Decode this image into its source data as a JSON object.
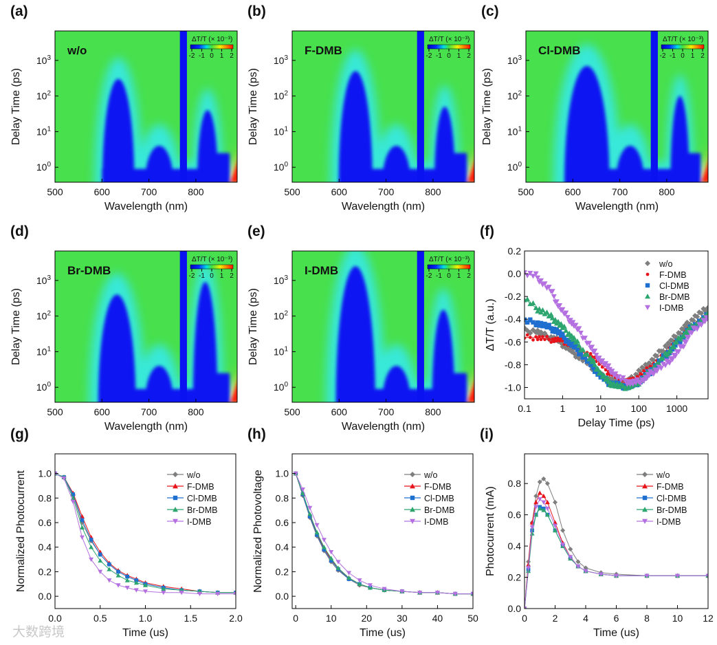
{
  "watermark": "大数跨境",
  "colors": {
    "w/o": "#7f7f7f",
    "F-DMB": "#e8141b",
    "Cl-DMB": "#1f6fd0",
    "Br-DMB": "#2ca56e",
    "I-DMB": "#b470e0"
  },
  "heatmap_colors": {
    "bleach": "#0a12f2",
    "halo": "#38e8d8",
    "background": "#48e04c",
    "positive": "#ff1a10"
  },
  "chart_data": [
    {
      "id": "a",
      "panel_label": "(a)",
      "type": "heatmap",
      "sample": "w/o",
      "xlabel": "Wavelength (nm)",
      "ylabel": "Delay Time (ps)",
      "xlim": [
        500,
        888
      ],
      "ylim": [
        0.38,
        6700
      ],
      "yscale": "log",
      "xticks": [
        "500",
        "600",
        "700",
        "800"
      ],
      "yticks": [
        "10^0",
        "10^1",
        "10^2",
        "10^3"
      ],
      "colorbar": {
        "title": "ΔT/T (× 10⁻³)",
        "ticks": [
          "-2",
          "-1",
          "0",
          "1",
          "2"
        ]
      },
      "bands": [
        {
          "nm": 635,
          "w": 34,
          "top": 300
        },
        {
          "nm": 722,
          "w": 30,
          "top": 4
        },
        {
          "nm": 825,
          "w": 22,
          "top": 40
        }
      ]
    },
    {
      "id": "b",
      "panel_label": "(b)",
      "type": "heatmap",
      "sample": "F-DMB",
      "xlabel": "Wavelength (nm)",
      "ylabel": "Delay Time (ps)",
      "xlim": [
        500,
        888
      ],
      "ylim": [
        0.38,
        6700
      ],
      "yscale": "log",
      "xticks": [
        "500",
        "600",
        "700",
        "800"
      ],
      "yticks": [
        "10^0",
        "10^1",
        "10^2",
        "10^3"
      ],
      "colorbar": {
        "title": "ΔT/T (× 10⁻³)",
        "ticks": [
          "-2",
          "-1",
          "0",
          "1",
          "2"
        ]
      },
      "bands": [
        {
          "nm": 635,
          "w": 36,
          "top": 500
        },
        {
          "nm": 722,
          "w": 30,
          "top": 4
        },
        {
          "nm": 825,
          "w": 22,
          "top": 50
        }
      ]
    },
    {
      "id": "c",
      "panel_label": "(c)",
      "type": "heatmap",
      "sample": "Cl-DMB",
      "xlabel": "Wavelength (nm)",
      "ylabel": "Delay Time (ps)",
      "xlim": [
        500,
        888
      ],
      "ylim": [
        0.38,
        6700
      ],
      "yscale": "log",
      "xticks": [
        "500",
        "600",
        "700",
        "800"
      ],
      "yticks": [
        "10^0",
        "10^1",
        "10^2",
        "10^3"
      ],
      "colorbar": {
        "title": "ΔT/T (× 10⁻³)",
        "ticks": [
          "-2",
          "-1",
          "0",
          "1",
          "2"
        ]
      },
      "bands": [
        {
          "nm": 630,
          "w": 48,
          "top": 700
        },
        {
          "nm": 722,
          "w": 30,
          "top": 4
        },
        {
          "nm": 828,
          "w": 20,
          "top": 100
        }
      ]
    },
    {
      "id": "d",
      "panel_label": "(d)",
      "type": "heatmap",
      "sample": "Br-DMB",
      "xlabel": "Wavelength (nm)",
      "ylabel": "Delay Time (ps)",
      "xlim": [
        500,
        888
      ],
      "ylim": [
        0.38,
        6700
      ],
      "yscale": "log",
      "xticks": [
        "500",
        "600",
        "700",
        "800"
      ],
      "yticks": [
        "10^0",
        "10^1",
        "10^2",
        "10^3"
      ],
      "colorbar": {
        "title": "ΔT/T (× 10⁻³)",
        "ticks": [
          "-2",
          "-1",
          "0",
          "1",
          "2"
        ]
      },
      "bands": [
        {
          "nm": 632,
          "w": 40,
          "top": 400
        },
        {
          "nm": 722,
          "w": 30,
          "top": 4
        },
        {
          "nm": 820,
          "w": 26,
          "top": 900
        }
      ]
    },
    {
      "id": "e",
      "panel_label": "(e)",
      "type": "heatmap",
      "sample": "I-DMB",
      "xlabel": "Wavelength (nm)",
      "ylabel": "Delay Time (ps)",
      "xlim": [
        500,
        888
      ],
      "ylim": [
        0.38,
        6700
      ],
      "yscale": "log",
      "xticks": [
        "500",
        "600",
        "700",
        "800"
      ],
      "yticks": [
        "10^0",
        "10^1",
        "10^2",
        "10^3"
      ],
      "colorbar": {
        "title": "ΔT/T (× 10⁻³)",
        "ticks": [
          "-2",
          "-1",
          "0",
          "1",
          "2"
        ]
      },
      "bands": [
        {
          "nm": 635,
          "w": 42,
          "top": 2500
        },
        {
          "nm": 722,
          "w": 30,
          "top": 4
        },
        {
          "nm": 822,
          "w": 24,
          "top": 150
        }
      ]
    },
    {
      "id": "f",
      "panel_label": "(f)",
      "type": "scatter",
      "xscale": "log",
      "xlabel": "Delay Time (ps)",
      "ylabel": "ΔT/T (a.u.)",
      "xlim": [
        0.1,
        6600
      ],
      "ylim": [
        -1.1,
        0.2
      ],
      "xticks": [
        {
          "v": 0.1,
          "t": "0.1"
        },
        {
          "v": 1,
          "t": "1"
        },
        {
          "v": 10,
          "t": "10"
        },
        {
          "v": 100,
          "t": "100"
        },
        {
          "v": 1000,
          "t": "1000"
        }
      ],
      "yticks": [
        {
          "v": 0.2,
          "t": "0.2"
        },
        {
          "v": 0,
          "t": "0.0"
        },
        {
          "v": -0.2,
          "t": "-0.2"
        },
        {
          "v": -0.4,
          "t": "-0.4"
        },
        {
          "v": -0.6,
          "t": "-0.6"
        },
        {
          "v": -0.8,
          "t": "-0.8"
        },
        {
          "v": -1.0,
          "t": "-1.0"
        }
      ],
      "legend": "top-right",
      "fit_lines": true,
      "x": [
        0.1,
        0.2,
        0.3,
        0.5,
        0.7,
        1,
        1.5,
        2,
        3,
        5,
        7,
        10,
        15,
        20,
        30,
        50,
        70,
        100,
        150,
        200,
        300,
        500,
        700,
        1000,
        1500,
        2000,
        3000,
        5000,
        7000
      ],
      "series": [
        {
          "name": "w/o",
          "marker": "diamond",
          "values": [
            -0.5,
            -0.5,
            -0.54,
            -0.56,
            -0.58,
            -0.62,
            -0.66,
            -0.7,
            -0.74,
            -0.8,
            -0.84,
            -0.9,
            -0.92,
            -0.94,
            -0.95,
            -0.95,
            -0.92,
            -0.86,
            -0.82,
            -0.78,
            -0.72,
            -0.64,
            -0.6,
            -0.54,
            -0.48,
            -0.44,
            -0.38,
            -0.33,
            -0.3
          ]
        },
        {
          "name": "F-DMB",
          "marker": "dot",
          "values": [
            -0.56,
            -0.56,
            -0.57,
            -0.58,
            -0.58,
            -0.59,
            -0.62,
            -0.64,
            -0.68,
            -0.72,
            -0.74,
            -0.8,
            -0.86,
            -0.88,
            -0.93,
            -0.94,
            -0.94,
            -0.9,
            -0.86,
            -0.82,
            -0.78,
            -0.7,
            -0.65,
            -0.6,
            -0.54,
            -0.5,
            -0.45,
            -0.4,
            -0.37
          ]
        },
        {
          "name": "Cl-DMB",
          "marker": "square",
          "values": [
            -0.42,
            -0.43,
            -0.45,
            -0.48,
            -0.5,
            -0.55,
            -0.6,
            -0.64,
            -0.7,
            -0.78,
            -0.84,
            -0.9,
            -0.95,
            -0.97,
            -0.98,
            -0.99,
            -0.98,
            -0.95,
            -0.9,
            -0.86,
            -0.8,
            -0.72,
            -0.67,
            -0.61,
            -0.55,
            -0.5,
            -0.45,
            -0.4,
            -0.36
          ]
        },
        {
          "name": "Br-DMB",
          "marker": "triangle-up",
          "values": [
            -0.22,
            -0.3,
            -0.33,
            -0.38,
            -0.42,
            -0.47,
            -0.53,
            -0.58,
            -0.65,
            -0.74,
            -0.8,
            -0.88,
            -0.94,
            -0.97,
            -0.99,
            -0.99,
            -0.98,
            -0.95,
            -0.9,
            -0.86,
            -0.8,
            -0.72,
            -0.67,
            -0.6,
            -0.54,
            -0.5,
            -0.45,
            -0.4,
            -0.36
          ]
        },
        {
          "name": "I-DMB",
          "marker": "triangle-down",
          "values": [
            0,
            -0.02,
            -0.08,
            -0.15,
            -0.25,
            -0.33,
            -0.4,
            -0.45,
            -0.52,
            -0.62,
            -0.7,
            -0.76,
            -0.82,
            -0.86,
            -0.92,
            -0.95,
            -0.96,
            -0.95,
            -0.92,
            -0.88,
            -0.84,
            -0.8,
            -0.75,
            -0.7,
            -0.62,
            -0.55,
            -0.48,
            -0.42,
            -0.38
          ]
        }
      ]
    },
    {
      "id": "g",
      "panel_label": "(g)",
      "type": "line",
      "xlabel": "Time (us)",
      "ylabel": "Normalized Photocurrent",
      "xlim": [
        0,
        2.0
      ],
      "ylim": [
        -0.1,
        1.16
      ],
      "xticks": [
        {
          "v": 0,
          "t": "0.0"
        },
        {
          "v": 0.5,
          "t": "0.5"
        },
        {
          "v": 1.0,
          "t": "1.0"
        },
        {
          "v": 1.5,
          "t": "1.5"
        },
        {
          "v": 2.0,
          "t": "2.0"
        }
      ],
      "yticks": [
        {
          "v": 0,
          "t": "0.0"
        },
        {
          "v": 0.2,
          "t": "0.2"
        },
        {
          "v": 0.4,
          "t": "0.4"
        },
        {
          "v": 0.6,
          "t": "0.6"
        },
        {
          "v": 0.8,
          "t": "0.8"
        },
        {
          "v": 1.0,
          "t": "1.0"
        }
      ],
      "legend": "top-right",
      "x": [
        0,
        0.1,
        0.2,
        0.3,
        0.4,
        0.5,
        0.6,
        0.7,
        0.8,
        0.9,
        1.0,
        1.2,
        1.4,
        1.6,
        1.8,
        2.0
      ],
      "series": [
        {
          "name": "w/o",
          "marker": "diamond",
          "values": [
            1,
            0.97,
            0.82,
            0.6,
            0.45,
            0.34,
            0.26,
            0.2,
            0.16,
            0.13,
            0.1,
            0.07,
            0.05,
            0.04,
            0.03,
            0.03
          ]
        },
        {
          "name": "F-DMB",
          "marker": "triangle-up",
          "values": [
            1,
            0.97,
            0.84,
            0.65,
            0.48,
            0.36,
            0.27,
            0.21,
            0.17,
            0.14,
            0.11,
            0.08,
            0.06,
            0.04,
            0.03,
            0.03
          ]
        },
        {
          "name": "Cl-DMB",
          "marker": "square",
          "values": [
            1,
            0.97,
            0.83,
            0.62,
            0.46,
            0.34,
            0.26,
            0.2,
            0.16,
            0.13,
            0.1,
            0.07,
            0.05,
            0.04,
            0.03,
            0.03
          ]
        },
        {
          "name": "Br-DMB",
          "marker": "triangle-up",
          "values": [
            1,
            0.97,
            0.8,
            0.56,
            0.4,
            0.29,
            0.22,
            0.17,
            0.13,
            0.11,
            0.09,
            0.06,
            0.05,
            0.04,
            0.03,
            0.03
          ]
        },
        {
          "name": "I-DMB",
          "marker": "triangle-down",
          "values": [
            1,
            0.96,
            0.77,
            0.48,
            0.3,
            0.2,
            0.13,
            0.09,
            0.07,
            0.05,
            0.04,
            0.03,
            0.03,
            0.02,
            0.02,
            0.02
          ]
        }
      ]
    },
    {
      "id": "h",
      "panel_label": "(h)",
      "type": "line",
      "xlabel": "Time (us)",
      "ylabel": "Normalized Photovoltage",
      "xlim": [
        -1,
        50
      ],
      "ylim": [
        -0.1,
        1.16
      ],
      "xticks": [
        {
          "v": 0,
          "t": "0"
        },
        {
          "v": 10,
          "t": "10"
        },
        {
          "v": 20,
          "t": "20"
        },
        {
          "v": 30,
          "t": "30"
        },
        {
          "v": 40,
          "t": "40"
        },
        {
          "v": 50,
          "t": "50"
        }
      ],
      "yticks": [
        {
          "v": 0,
          "t": "0.0"
        },
        {
          "v": 0.2,
          "t": "0.2"
        },
        {
          "v": 0.4,
          "t": "0.4"
        },
        {
          "v": 0.6,
          "t": "0.6"
        },
        {
          "v": 0.8,
          "t": "0.8"
        },
        {
          "v": 1.0,
          "t": "1.0"
        }
      ],
      "legend": "top-right",
      "x": [
        0,
        2,
        4,
        6,
        8,
        10,
        12,
        15,
        18,
        21,
        25,
        30,
        35,
        40,
        45,
        50
      ],
      "series": [
        {
          "name": "w/o",
          "marker": "diamond",
          "values": [
            1,
            0.82,
            0.64,
            0.49,
            0.37,
            0.28,
            0.21,
            0.14,
            0.09,
            0.07,
            0.05,
            0.04,
            0.03,
            0.03,
            0.02,
            0.02
          ]
        },
        {
          "name": "F-DMB",
          "marker": "triangle-up",
          "values": [
            1,
            0.83,
            0.66,
            0.51,
            0.39,
            0.3,
            0.22,
            0.15,
            0.1,
            0.07,
            0.05,
            0.04,
            0.03,
            0.03,
            0.02,
            0.02
          ]
        },
        {
          "name": "Cl-DMB",
          "marker": "square",
          "values": [
            1,
            0.83,
            0.65,
            0.5,
            0.38,
            0.29,
            0.22,
            0.14,
            0.1,
            0.07,
            0.05,
            0.04,
            0.03,
            0.03,
            0.02,
            0.02
          ]
        },
        {
          "name": "Br-DMB",
          "marker": "triangle-up",
          "values": [
            1,
            0.84,
            0.67,
            0.52,
            0.4,
            0.31,
            0.23,
            0.15,
            0.1,
            0.07,
            0.05,
            0.04,
            0.03,
            0.03,
            0.02,
            0.02
          ]
        },
        {
          "name": "I-DMB",
          "marker": "triangle-down",
          "values": [
            1,
            0.87,
            0.72,
            0.58,
            0.46,
            0.36,
            0.28,
            0.19,
            0.13,
            0.09,
            0.06,
            0.04,
            0.03,
            0.03,
            0.02,
            0.02
          ]
        }
      ]
    },
    {
      "id": "i",
      "panel_label": "(i)",
      "type": "line",
      "xlabel": "Time (us)",
      "ylabel": "Photocurrent (mA)",
      "xlim": [
        0,
        12
      ],
      "ylim": [
        0,
        0.99
      ],
      "xticks": [
        {
          "v": 0,
          "t": "0"
        },
        {
          "v": 2,
          "t": "2"
        },
        {
          "v": 4,
          "t": "4"
        },
        {
          "v": 6,
          "t": "6"
        },
        {
          "v": 8,
          "t": "8"
        },
        {
          "v": 10,
          "t": "10"
        },
        {
          "v": 12,
          "t": "12"
        }
      ],
      "yticks": [
        {
          "v": 0,
          "t": "0.0"
        },
        {
          "v": 0.2,
          "t": "0.2"
        },
        {
          "v": 0.4,
          "t": "0.4"
        },
        {
          "v": 0.6,
          "t": "0.6"
        },
        {
          "v": 0.8,
          "t": "0.8"
        }
      ],
      "legend": "top-right",
      "x": [
        0,
        0.25,
        0.5,
        0.75,
        1,
        1.25,
        1.5,
        2,
        2.5,
        3,
        3.5,
        4,
        5,
        6,
        8,
        10,
        12
      ],
      "series": [
        {
          "name": "w/o",
          "marker": "diamond",
          "values": [
            0,
            0.3,
            0.55,
            0.72,
            0.81,
            0.83,
            0.8,
            0.68,
            0.5,
            0.38,
            0.3,
            0.26,
            0.23,
            0.22,
            0.21,
            0.21,
            0.21
          ]
        },
        {
          "name": "F-DMB",
          "marker": "triangle-up",
          "values": [
            0,
            0.28,
            0.55,
            0.68,
            0.74,
            0.72,
            0.68,
            0.55,
            0.42,
            0.33,
            0.27,
            0.24,
            0.22,
            0.21,
            0.21,
            0.21,
            0.21
          ]
        },
        {
          "name": "Cl-DMB",
          "marker": "square",
          "values": [
            0,
            0.25,
            0.5,
            0.6,
            0.65,
            0.64,
            0.6,
            0.5,
            0.4,
            0.32,
            0.27,
            0.24,
            0.22,
            0.21,
            0.21,
            0.21,
            0.21
          ]
        },
        {
          "name": "Br-DMB",
          "marker": "triangle-up",
          "values": [
            0,
            0.24,
            0.48,
            0.6,
            0.64,
            0.63,
            0.6,
            0.5,
            0.4,
            0.32,
            0.27,
            0.24,
            0.22,
            0.21,
            0.21,
            0.21,
            0.21
          ]
        },
        {
          "name": "I-DMB",
          "marker": "triangle-down",
          "values": [
            0,
            0.26,
            0.52,
            0.65,
            0.7,
            0.68,
            0.64,
            0.53,
            0.41,
            0.33,
            0.27,
            0.24,
            0.22,
            0.21,
            0.21,
            0.21,
            0.21
          ]
        }
      ]
    }
  ]
}
